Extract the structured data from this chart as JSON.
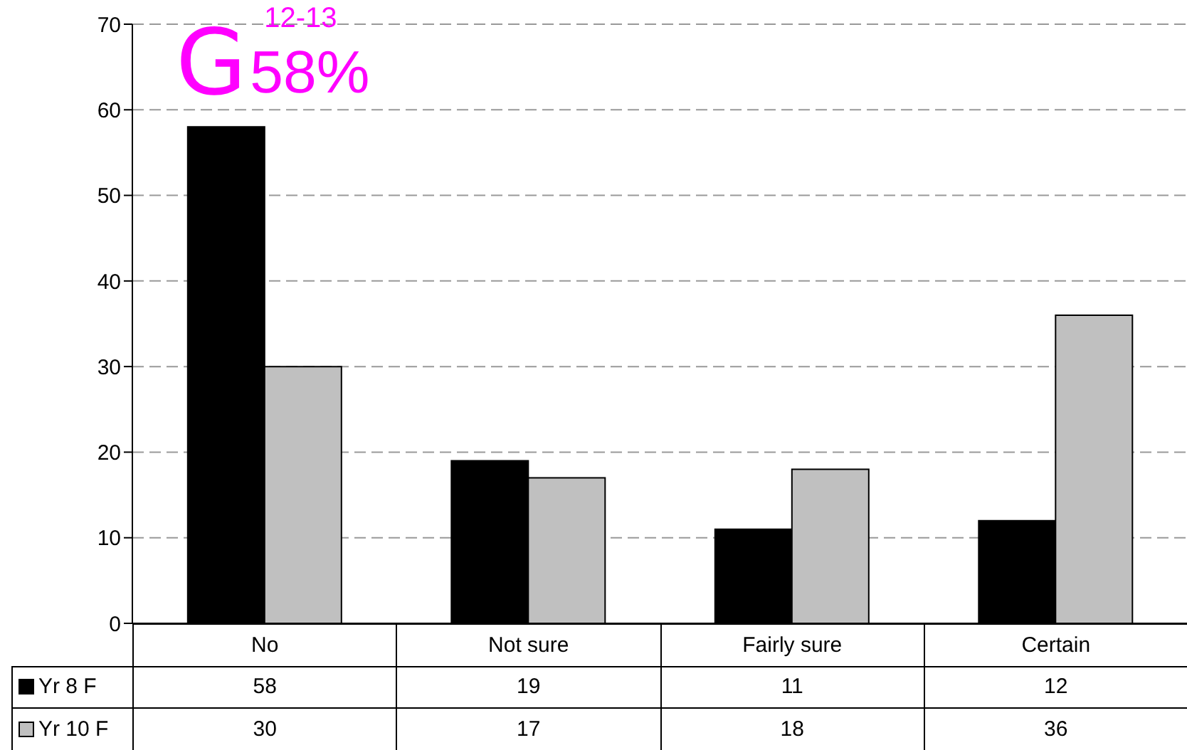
{
  "chart_data": {
    "type": "bar",
    "categories": [
      "No",
      "Not sure",
      "Fairly sure",
      "Certain"
    ],
    "series": [
      {
        "name": "Yr 8 F",
        "color": "#000000",
        "values": [
          58,
          19,
          11,
          12
        ]
      },
      {
        "name": "Yr 10 F",
        "color": "#c0c0c0",
        "values": [
          30,
          17,
          18,
          36
        ]
      }
    ],
    "ylim": [
      0,
      70
    ],
    "yticks": [
      0,
      10,
      20,
      30,
      40,
      50,
      60,
      70
    ],
    "grid": "y",
    "legend": "bottom",
    "data_labels": true,
    "annotations": [
      "G",
      "12-13",
      {
        "text": "58%",
        "x": "No",
        "y": 58
      }
    ]
  }
}
